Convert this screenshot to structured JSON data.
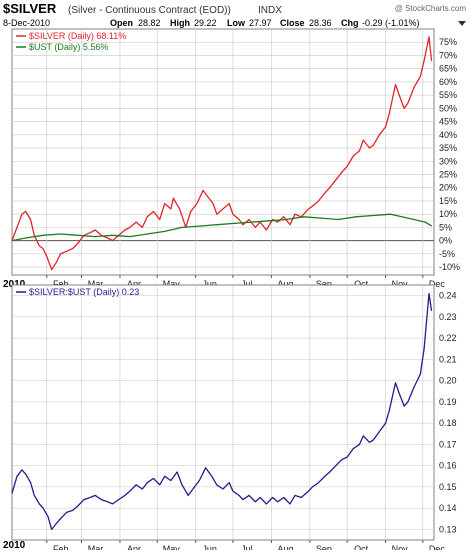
{
  "header": {
    "symbol": "$SILVER",
    "description": "(Silver - Continuous Contract (EOD))",
    "exchange": "INDX",
    "date": "8-Dec-2010",
    "open_label": "Open",
    "open": "28.82",
    "high_label": "High",
    "high": "29.22",
    "low_label": "Low",
    "low": "27.97",
    "close_label": "Close",
    "close": "28.36",
    "chg_label": "Chg",
    "chg": "-0.29 (-1.01%)",
    "watermark": "@ StockCharts.com",
    "year_top": "2010",
    "year_bottom": "2010"
  },
  "colors": {
    "silver": "#e3242b",
    "ust": "#1e7b1e",
    "ratio": "#1f1f8c",
    "grid": "#c8c8c8",
    "zero_line": "#555555"
  },
  "chart_data": [
    {
      "type": "line",
      "title": "",
      "ylabel": "",
      "xlabel": "",
      "x_ticks": [
        "Feb",
        "Mar",
        "Apr",
        "May",
        "Jun",
        "Jul",
        "Aug",
        "Sep",
        "Oct",
        "Nov",
        "Dec"
      ],
      "y_ticks": [
        "-10%",
        "-5%",
        "0%",
        "5%",
        "10%",
        "15%",
        "20%",
        "25%",
        "30%",
        "35%",
        "40%",
        "45%",
        "50%",
        "55%",
        "60%",
        "65%",
        "70%",
        "75%"
      ],
      "ylim": [
        -13,
        80
      ],
      "grid": true,
      "legend": "top-left",
      "series": [
        {
          "name": "$SILVER (Daily) 68.11%",
          "color": "red",
          "points": [
            [
              "2010-01-04",
              0
            ],
            [
              "2010-01-08",
              5
            ],
            [
              "2010-01-12",
              10
            ],
            [
              "2010-01-15",
              11
            ],
            [
              "2010-01-19",
              8
            ],
            [
              "2010-01-22",
              2
            ],
            [
              "2010-01-26",
              -2
            ],
            [
              "2010-01-29",
              -3
            ],
            [
              "2010-02-01",
              -6
            ],
            [
              "2010-02-05",
              -11
            ],
            [
              "2010-02-09",
              -8
            ],
            [
              "2010-02-12",
              -5
            ],
            [
              "2010-02-17",
              -4
            ],
            [
              "2010-02-22",
              -3
            ],
            [
              "2010-02-26",
              -1
            ],
            [
              "2010-03-03",
              2
            ],
            [
              "2010-03-08",
              3
            ],
            [
              "2010-03-12",
              4
            ],
            [
              "2010-03-17",
              2
            ],
            [
              "2010-03-22",
              1
            ],
            [
              "2010-03-26",
              0
            ],
            [
              "2010-03-31",
              2
            ],
            [
              "2010-04-05",
              4
            ],
            [
              "2010-04-09",
              5
            ],
            [
              "2010-04-14",
              7
            ],
            [
              "2010-04-19",
              5
            ],
            [
              "2010-04-23",
              9
            ],
            [
              "2010-04-28",
              11
            ],
            [
              "2010-05-03",
              8
            ],
            [
              "2010-05-07",
              14
            ],
            [
              "2010-05-12",
              12
            ],
            [
              "2010-05-14",
              16
            ],
            [
              "2010-05-19",
              12
            ],
            [
              "2010-05-24",
              5
            ],
            [
              "2010-05-28",
              11
            ],
            [
              "2010-06-02",
              14
            ],
            [
              "2010-06-07",
              19
            ],
            [
              "2010-06-10",
              17
            ],
            [
              "2010-06-15",
              14
            ],
            [
              "2010-06-18",
              10
            ],
            [
              "2010-06-23",
              12
            ],
            [
              "2010-06-28",
              14
            ],
            [
              "2010-07-01",
              10
            ],
            [
              "2010-07-06",
              8
            ],
            [
              "2010-07-09",
              6
            ],
            [
              "2010-07-14",
              8
            ],
            [
              "2010-07-19",
              5
            ],
            [
              "2010-07-23",
              7
            ],
            [
              "2010-07-28",
              4
            ],
            [
              "2010-08-02",
              8
            ],
            [
              "2010-08-06",
              7
            ],
            [
              "2010-08-11",
              9
            ],
            [
              "2010-08-16",
              6
            ],
            [
              "2010-08-20",
              10
            ],
            [
              "2010-08-25",
              9
            ],
            [
              "2010-08-31",
              12
            ],
            [
              "2010-09-03",
              13
            ],
            [
              "2010-09-08",
              15
            ],
            [
              "2010-09-13",
              18
            ],
            [
              "2010-09-17",
              20
            ],
            [
              "2010-09-22",
              23
            ],
            [
              "2010-09-27",
              26
            ],
            [
              "2010-10-01",
              28
            ],
            [
              "2010-10-06",
              32
            ],
            [
              "2010-10-11",
              34
            ],
            [
              "2010-10-14",
              38
            ],
            [
              "2010-10-19",
              35
            ],
            [
              "2010-10-22",
              36
            ],
            [
              "2010-10-27",
              40
            ],
            [
              "2010-11-01",
              43
            ],
            [
              "2010-11-04",
              48
            ],
            [
              "2010-11-09",
              59
            ],
            [
              "2010-11-12",
              55
            ],
            [
              "2010-11-16",
              50
            ],
            [
              "2010-11-19",
              52
            ],
            [
              "2010-11-24",
              58
            ],
            [
              "2010-11-29",
              62
            ],
            [
              "2010-12-02",
              68
            ],
            [
              "2010-12-06",
              77
            ],
            [
              "2010-12-08",
              68
            ]
          ]
        },
        {
          "name": "$UST (Daily) 5.56%",
          "color": "green",
          "points": [
            [
              "2010-01-04",
              0
            ],
            [
              "2010-01-15",
              1
            ],
            [
              "2010-01-29",
              2
            ],
            [
              "2010-02-12",
              2.5
            ],
            [
              "2010-02-26",
              2
            ],
            [
              "2010-03-12",
              1.5
            ],
            [
              "2010-03-26",
              2
            ],
            [
              "2010-04-09",
              1.5
            ],
            [
              "2010-04-23",
              2.5
            ],
            [
              "2010-05-07",
              3.5
            ],
            [
              "2010-05-21",
              5
            ],
            [
              "2010-06-04",
              5.5
            ],
            [
              "2010-06-18",
              6
            ],
            [
              "2010-07-02",
              6.5
            ],
            [
              "2010-07-16",
              7
            ],
            [
              "2010-07-30",
              7.5
            ],
            [
              "2010-08-13",
              8
            ],
            [
              "2010-08-27",
              9
            ],
            [
              "2010-09-10",
              8.5
            ],
            [
              "2010-09-24",
              8
            ],
            [
              "2010-10-08",
              9
            ],
            [
              "2010-10-22",
              9.5
            ],
            [
              "2010-11-05",
              10
            ],
            [
              "2010-11-19",
              8.5
            ],
            [
              "2010-12-03",
              7
            ],
            [
              "2010-12-08",
              5.56
            ]
          ]
        }
      ]
    },
    {
      "type": "line",
      "title": "",
      "ylabel": "",
      "xlabel": "",
      "x_ticks": [
        "Feb",
        "Mar",
        "Apr",
        "May",
        "Jun",
        "Jul",
        "Aug",
        "Sep",
        "Oct",
        "Nov",
        "Dec"
      ],
      "y_ticks": [
        "0.13",
        "0.14",
        "0.15",
        "0.16",
        "0.17",
        "0.18",
        "0.19",
        "0.20",
        "0.21",
        "0.22",
        "0.23",
        "0.24"
      ],
      "ylim": [
        0.125,
        0.245
      ],
      "grid": true,
      "legend": "top-left",
      "series": [
        {
          "name": "$SILVER:$UST (Daily) 0.23",
          "color": "blue",
          "points": [
            [
              "2010-01-04",
              0.147
            ],
            [
              "2010-01-08",
              0.155
            ],
            [
              "2010-01-12",
              0.158
            ],
            [
              "2010-01-15",
              0.156
            ],
            [
              "2010-01-19",
              0.152
            ],
            [
              "2010-01-22",
              0.146
            ],
            [
              "2010-01-26",
              0.142
            ],
            [
              "2010-01-29",
              0.14
            ],
            [
              "2010-02-02",
              0.136
            ],
            [
              "2010-02-05",
              0.13
            ],
            [
              "2010-02-09",
              0.133
            ],
            [
              "2010-02-12",
              0.135
            ],
            [
              "2010-02-17",
              0.138
            ],
            [
              "2010-02-22",
              0.139
            ],
            [
              "2010-02-26",
              0.141
            ],
            [
              "2010-03-03",
              0.144
            ],
            [
              "2010-03-08",
              0.145
            ],
            [
              "2010-03-12",
              0.146
            ],
            [
              "2010-03-17",
              0.144
            ],
            [
              "2010-03-22",
              0.143
            ],
            [
              "2010-03-26",
              0.142
            ],
            [
              "2010-03-31",
              0.144
            ],
            [
              "2010-04-05",
              0.146
            ],
            [
              "2010-04-09",
              0.148
            ],
            [
              "2010-04-14",
              0.151
            ],
            [
              "2010-04-19",
              0.149
            ],
            [
              "2010-04-23",
              0.152
            ],
            [
              "2010-04-28",
              0.154
            ],
            [
              "2010-05-03",
              0.151
            ],
            [
              "2010-05-07",
              0.155
            ],
            [
              "2010-05-12",
              0.153
            ],
            [
              "2010-05-17",
              0.157
            ],
            [
              "2010-05-21",
              0.151
            ],
            [
              "2010-05-26",
              0.146
            ],
            [
              "2010-05-31",
              0.15
            ],
            [
              "2010-06-04",
              0.153
            ],
            [
              "2010-06-09",
              0.159
            ],
            [
              "2010-06-14",
              0.155
            ],
            [
              "2010-06-18",
              0.151
            ],
            [
              "2010-06-23",
              0.149
            ],
            [
              "2010-06-28",
              0.152
            ],
            [
              "2010-07-01",
              0.148
            ],
            [
              "2010-07-06",
              0.146
            ],
            [
              "2010-07-09",
              0.144
            ],
            [
              "2010-07-14",
              0.146
            ],
            [
              "2010-07-19",
              0.143
            ],
            [
              "2010-07-23",
              0.145
            ],
            [
              "2010-07-28",
              0.142
            ],
            [
              "2010-08-02",
              0.145
            ],
            [
              "2010-08-06",
              0.143
            ],
            [
              "2010-08-11",
              0.145
            ],
            [
              "2010-08-16",
              0.142
            ],
            [
              "2010-08-20",
              0.146
            ],
            [
              "2010-08-25",
              0.145
            ],
            [
              "2010-08-31",
              0.148
            ],
            [
              "2010-09-03",
              0.15
            ],
            [
              "2010-09-08",
              0.152
            ],
            [
              "2010-09-13",
              0.155
            ],
            [
              "2010-09-17",
              0.157
            ],
            [
              "2010-09-22",
              0.16
            ],
            [
              "2010-09-27",
              0.163
            ],
            [
              "2010-10-01",
              0.164
            ],
            [
              "2010-10-06",
              0.168
            ],
            [
              "2010-10-11",
              0.17
            ],
            [
              "2010-10-14",
              0.174
            ],
            [
              "2010-10-19",
              0.171
            ],
            [
              "2010-10-22",
              0.172
            ],
            [
              "2010-10-27",
              0.176
            ],
            [
              "2010-11-01",
              0.18
            ],
            [
              "2010-11-04",
              0.186
            ],
            [
              "2010-11-09",
              0.199
            ],
            [
              "2010-11-12",
              0.194
            ],
            [
              "2010-11-16",
              0.188
            ],
            [
              "2010-11-19",
              0.19
            ],
            [
              "2010-11-24",
              0.197
            ],
            [
              "2010-11-29",
              0.203
            ],
            [
              "2010-12-02",
              0.215
            ],
            [
              "2010-12-06",
              0.241
            ],
            [
              "2010-12-08",
              0.233
            ]
          ]
        }
      ]
    }
  ]
}
